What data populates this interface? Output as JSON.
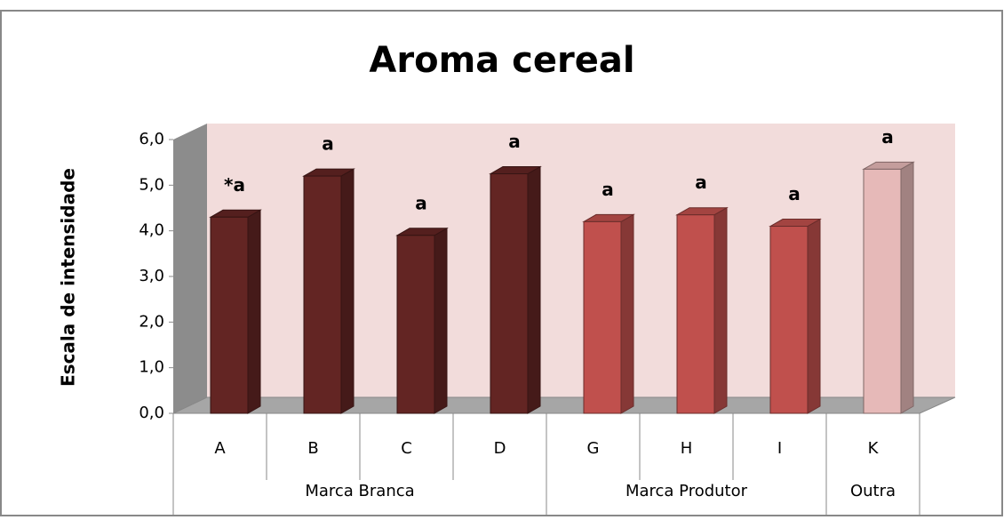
{
  "chart_data": {
    "type": "bar",
    "title": "Aroma cereal",
    "y_label": "Escala de intensidade",
    "ylim": [
      0,
      6
    ],
    "yticks": [
      {
        "value": 0,
        "label": "0,0"
      },
      {
        "value": 1,
        "label": "1,0"
      },
      {
        "value": 2,
        "label": "2,0"
      },
      {
        "value": 3,
        "label": "3,0"
      },
      {
        "value": 4,
        "label": "4,0"
      },
      {
        "value": 5,
        "label": "5,0"
      },
      {
        "value": 6,
        "label": "6,0"
      }
    ],
    "series": [
      {
        "name": "Marca Branca",
        "color": "#632523",
        "categories": [
          "A",
          "B",
          "C",
          "D"
        ],
        "values": [
          4.3,
          5.2,
          3.9,
          5.25
        ],
        "annotations": [
          "*a",
          "a",
          "a",
          "a"
        ]
      },
      {
        "name": "Marca Produtor",
        "color": "#c0504d",
        "categories": [
          "G",
          "H",
          "I"
        ],
        "values": [
          4.2,
          4.35,
          4.1
        ],
        "annotations": [
          "a",
          "a",
          "a"
        ]
      },
      {
        "name": "Outra",
        "color": "#e6b9b8",
        "categories": [
          "K"
        ],
        "values": [
          5.35
        ],
        "annotations": [
          "a"
        ]
      }
    ]
  }
}
